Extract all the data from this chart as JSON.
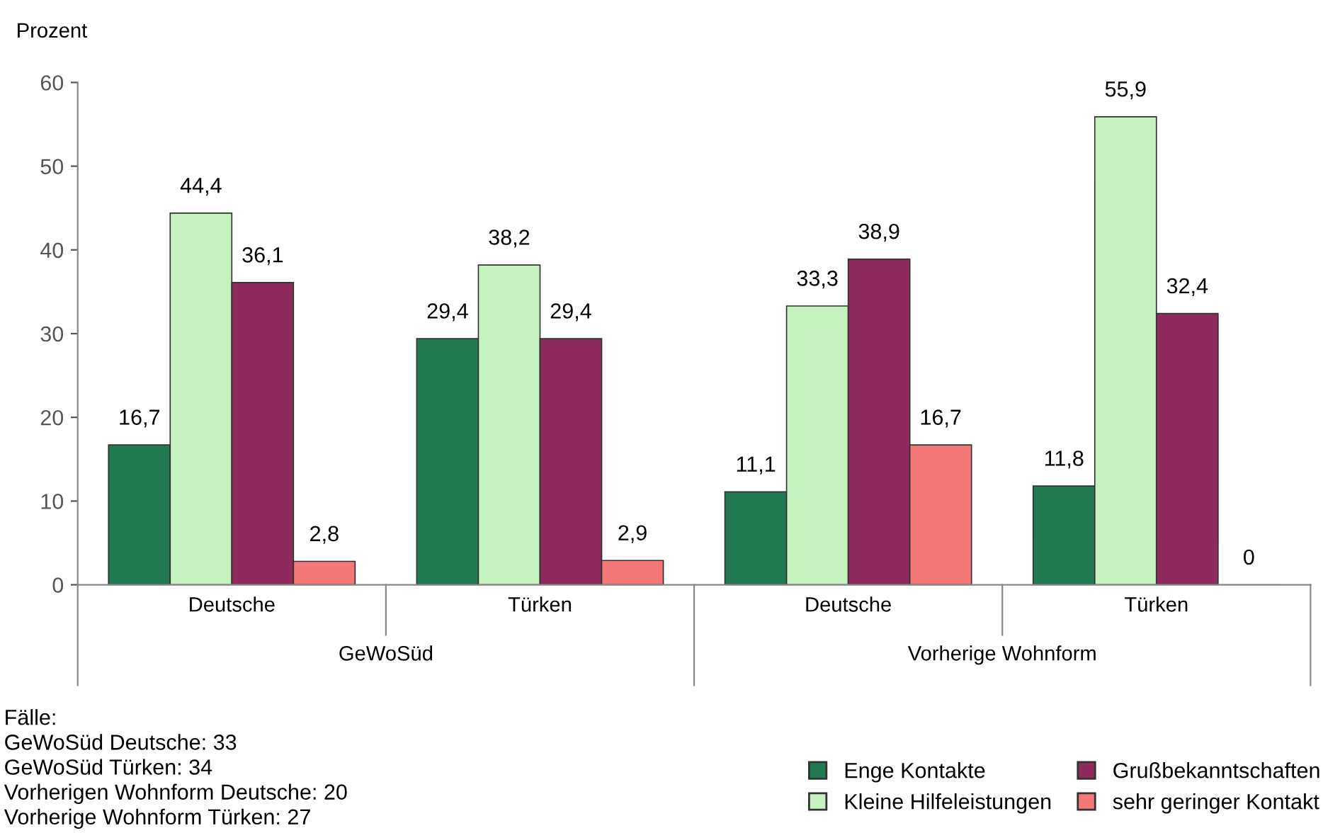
{
  "chart_data": {
    "type": "bar",
    "ylabel": "Prozent",
    "categories": [
      "Deutsche",
      "Türken",
      "Deutsche",
      "Türken"
    ],
    "series": [
      {
        "name": "Enge Kontakte",
        "color": "#217a52",
        "values": [
          16.7,
          29.4,
          11.1,
          11.8
        ],
        "value_labels": [
          "16,7",
          "29,4",
          "11,1",
          "11,8"
        ]
      },
      {
        "name": "Kleine Hilfeleistungen",
        "color": "#c6f2c0",
        "values": [
          44.4,
          38.2,
          33.3,
          55.9
        ],
        "value_labels": [
          "44,4",
          "38,2",
          "33,3",
          "55,9"
        ]
      },
      {
        "name": "Grußbekanntschaften",
        "color": "#8e2a5c",
        "values": [
          36.1,
          29.4,
          38.9,
          32.4
        ],
        "value_labels": [
          "36,1",
          "29,4",
          "38,9",
          "32,4"
        ]
      },
      {
        "name": "sehr geringer Kontakt",
        "color": "#f47878",
        "values": [
          2.8,
          2.9,
          16.7,
          0
        ],
        "value_labels": [
          "2,8",
          "2,9",
          "16,7",
          "0"
        ]
      }
    ],
    "ylim": [
      0,
      60
    ],
    "yticks": [
      0,
      10,
      20,
      30,
      40,
      50,
      60
    ],
    "grid": false,
    "legend": "bottom right",
    "annotations": [
      "GeWoSüd",
      "Vorherige Wohnform",
      "Fälle:\nGeWoSüd Deutsche: 33\nGeWoSüd Türken: 34\nVorherigen Wohnform Deutsche: 20\nVorherige Wohnform Türken: 27"
    ]
  }
}
